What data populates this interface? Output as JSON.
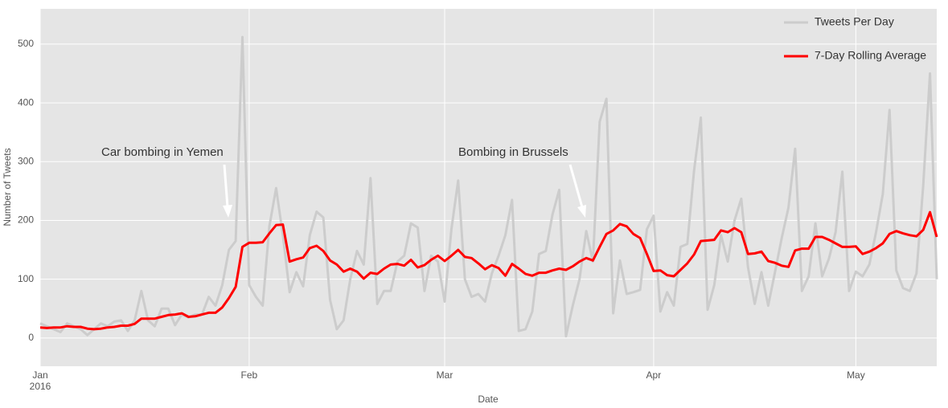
{
  "chart_data": {
    "type": "line",
    "x_label": "Date",
    "y_label": "Number of Tweets",
    "x": [
      0,
      1,
      2,
      3,
      4,
      5,
      6,
      7,
      8,
      9,
      10,
      11,
      12,
      13,
      14,
      15,
      16,
      17,
      18,
      19,
      20,
      21,
      22,
      23,
      24,
      25,
      26,
      27,
      28,
      29,
      30,
      31,
      32,
      33,
      34,
      35,
      36,
      37,
      38,
      39,
      40,
      41,
      42,
      43,
      44,
      45,
      46,
      47,
      48,
      49,
      50,
      51,
      52,
      53,
      54,
      55,
      56,
      57,
      58,
      59,
      60,
      61,
      62,
      63,
      64,
      65,
      66,
      67,
      68,
      69,
      70,
      71,
      72,
      73,
      74,
      75,
      76,
      77,
      78,
      79,
      80,
      81,
      82,
      83,
      84,
      85,
      86,
      87,
      88,
      89,
      90,
      91,
      92,
      93,
      94,
      95,
      96,
      97,
      98,
      99,
      100,
      101,
      102,
      103,
      104,
      105,
      106,
      107,
      108,
      109,
      110,
      111,
      112,
      113,
      114,
      115,
      116,
      117,
      118,
      119,
      120,
      121,
      122,
      123,
      124,
      125,
      126,
      127,
      128,
      129,
      130,
      131,
      132,
      133
    ],
    "xlim": [
      0,
      133
    ],
    "xticks": [
      {
        "value": 0,
        "label": "Jan\n2016"
      },
      {
        "value": 31,
        "label": "Feb"
      },
      {
        "value": 60,
        "label": "Mar"
      },
      {
        "value": 91,
        "label": "Apr"
      },
      {
        "value": 121,
        "label": "May"
      }
    ],
    "ylim": [
      -48,
      560
    ],
    "yticks": [
      0,
      100,
      200,
      300,
      400,
      500
    ],
    "grid": true,
    "legend": "upper right",
    "series": [
      {
        "name": "Tweets Per Day",
        "color": "#cccccc",
        "values": [
          25,
          20,
          15,
          10,
          25,
          20,
          15,
          5,
          15,
          25,
          20,
          28,
          30,
          12,
          30,
          80,
          30,
          20,
          50,
          50,
          22,
          40,
          35,
          40,
          40,
          70,
          55,
          90,
          150,
          165,
          512,
          90,
          70,
          55,
          190,
          255,
          175,
          78,
          112,
          88,
          175,
          215,
          205,
          65,
          15,
          30,
          100,
          148,
          125,
          272,
          58,
          80,
          80,
          130,
          140,
          195,
          188,
          80,
          140,
          130,
          62,
          185,
          268,
          100,
          70,
          75,
          62,
          110,
          140,
          175,
          235,
          12,
          15,
          45,
          143,
          148,
          210,
          252,
          3,
          55,
          100,
          182,
          130,
          368,
          407,
          42,
          132,
          75,
          78,
          82,
          185,
          208,
          45,
          78,
          55,
          155,
          160,
          285,
          375,
          48,
          90,
          175,
          130,
          200,
          237,
          120,
          58,
          112,
          55,
          112,
          170,
          222,
          322,
          80,
          105,
          195,
          105,
          135,
          180,
          283,
          80,
          113,
          105,
          125,
          180,
          245,
          388,
          115,
          85,
          80,
          110,
          260,
          450,
          100
        ]
      },
      {
        "name": "7-Day Rolling Average",
        "color": "#ff0000",
        "values": [
          18,
          17,
          18,
          18,
          20,
          19,
          19,
          16,
          15,
          16,
          18,
          19,
          21,
          21,
          24,
          33,
          33,
          33,
          36,
          39,
          40,
          42,
          36,
          37,
          40,
          43,
          43,
          52,
          68,
          87,
          155,
          162,
          162,
          163,
          178,
          192,
          193,
          130,
          134,
          137,
          153,
          157,
          148,
          132,
          125,
          113,
          118,
          113,
          101,
          111,
          109,
          118,
          125,
          126,
          123,
          133,
          120,
          124,
          133,
          140,
          131,
          140,
          150,
          138,
          136,
          127,
          117,
          124,
          119,
          106,
          126,
          118,
          109,
          106,
          111,
          111,
          115,
          118,
          116,
          122,
          130,
          136,
          132,
          155,
          177,
          183,
          194,
          190,
          177,
          170,
          143,
          114,
          115,
          107,
          105,
          116,
          127,
          142,
          165,
          166,
          167,
          183,
          180,
          187,
          180,
          143,
          144,
          147,
          131,
          128,
          123,
          121,
          149,
          152,
          152,
          172,
          172,
          167,
          161,
          155,
          155,
          156,
          143,
          147,
          153,
          161,
          177,
          182,
          178,
          175,
          173,
          184,
          214,
          172
        ]
      }
    ],
    "annotations": [
      "Car bombing in Yemen",
      "Bombing in Brussels"
    ]
  }
}
